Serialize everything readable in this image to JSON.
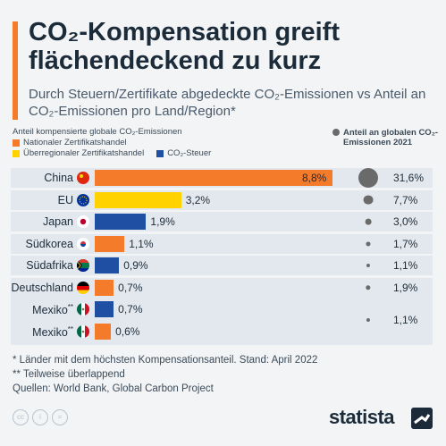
{
  "title": "CO₂-Kompensation greift flächendeckend zu kurz",
  "subtitle": "Durch Steuern/Zertifikate abgedeckte CO₂-Emissionen vs Anteil an CO₂-Emissionen pro Land/Region*",
  "colors": {
    "national": "#f47b2a",
    "supraregional": "#ffd200",
    "tax": "#1f4fa3",
    "share_dot": "#6a6a6a",
    "accent": "#f47b2a"
  },
  "chart_data": {
    "type": "bar",
    "orientation": "horizontal",
    "axis_caption": "Anteil kompensierte globale CO₂-Emissionen",
    "legend": {
      "national": "Nationaler Zertifikatshandel",
      "supraregional": "Überregionaler Zertifikatshandel",
      "tax": "CO₂-Steuer",
      "share": "Anteil an globalen CO₂-Emissionen 2021"
    },
    "rows": [
      {
        "country": "China",
        "flag": "china-flag",
        "type": "national",
        "value": 8.8,
        "label": "8,8%",
        "share": 31.6,
        "share_label": "31,6%"
      },
      {
        "country": "EU",
        "flag": "eu-flag",
        "type": "supraregional",
        "value": 3.2,
        "label": "3,2%",
        "share": 7.7,
        "share_label": "7,7%"
      },
      {
        "country": "Japan",
        "flag": "japan-flag",
        "type": "tax",
        "value": 1.9,
        "label": "1,9%",
        "share": 3.0,
        "share_label": "3,0%"
      },
      {
        "country": "Südkorea",
        "flag": "south-korea-flag",
        "type": "national",
        "value": 1.1,
        "label": "1,1%",
        "share": 1.7,
        "share_label": "1,7%"
      },
      {
        "country": "Südafrika",
        "flag": "south-africa-flag",
        "type": "tax",
        "value": 0.9,
        "label": "0,9%",
        "share": 1.1,
        "share_label": "1,1%"
      },
      {
        "country": "Deutschland",
        "flag": "germany-flag",
        "type": "national",
        "value": 0.7,
        "label": "0,7%",
        "share": 1.9,
        "share_label": "1,9%"
      },
      {
        "country": "Mexiko",
        "marker": "**",
        "flag": "mexico-flag",
        "type": "tax",
        "value": 0.7,
        "label": "0,7%",
        "share": 1.1,
        "share_label": "1,1%",
        "group": "mexico"
      },
      {
        "country": "Mexiko",
        "marker": "**",
        "flag": "mexico-flag",
        "type": "national",
        "value": 0.6,
        "label": "0,6%",
        "share": null,
        "share_label": "",
        "group": "mexico"
      }
    ],
    "xlim": [
      0,
      9
    ]
  },
  "footnotes": [
    "*  Länder mit dem höchsten Kompensationsanteil. Stand: April 2022",
    "** Teilweise überlappend",
    "Quellen: World Bank, Global Carbon Project"
  ],
  "brand": "statista",
  "license_icons": [
    "cc-icon",
    "by-icon",
    "nd-icon"
  ]
}
